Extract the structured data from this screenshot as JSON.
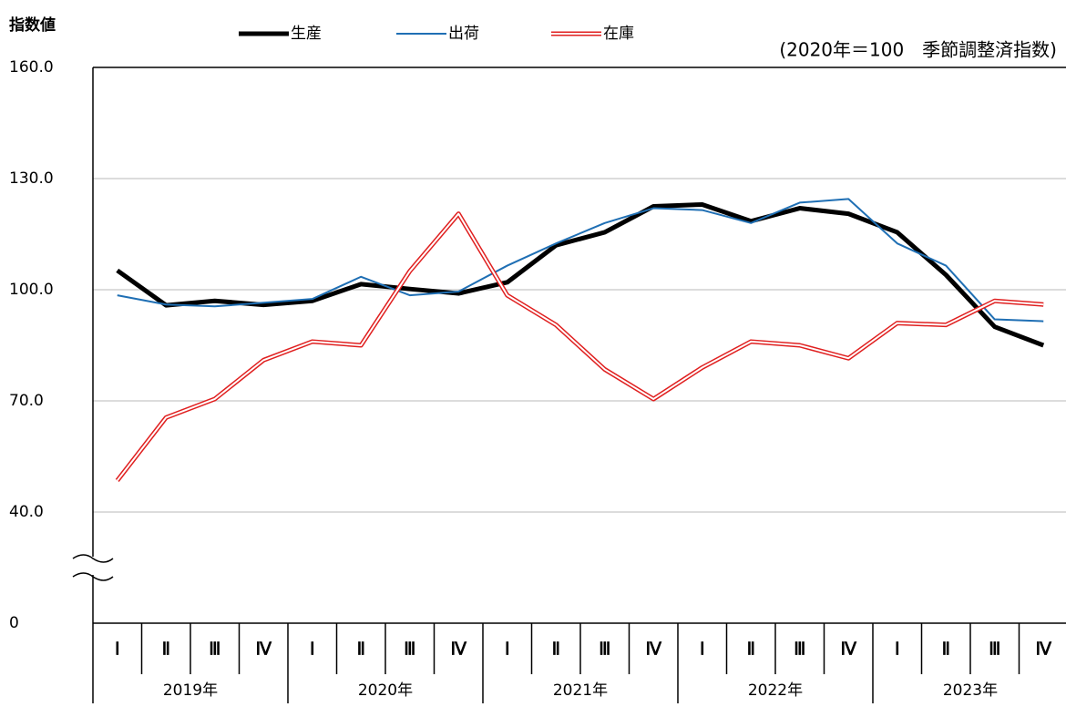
{
  "chart_data": {
    "type": "line",
    "y_axis_label": "指数値",
    "note": "(2020年＝100　季節調整済指数)",
    "categories": [
      "Ⅰ",
      "Ⅱ",
      "Ⅲ",
      "Ⅳ",
      "Ⅰ",
      "Ⅱ",
      "Ⅲ",
      "Ⅳ",
      "Ⅰ",
      "Ⅱ",
      "Ⅲ",
      "Ⅳ",
      "Ⅰ",
      "Ⅱ",
      "Ⅲ",
      "Ⅳ",
      "Ⅰ",
      "Ⅱ",
      "Ⅲ",
      "Ⅳ"
    ],
    "years": [
      "2019年",
      "2020年",
      "2021年",
      "2022年",
      "2023年"
    ],
    "series": [
      {
        "name": "生産",
        "color": "#000000",
        "values": [
          105.2,
          95.8,
          97,
          95.9,
          97,
          101.5,
          100.2,
          99,
          102,
          112,
          115.5,
          122.5,
          123,
          118.5,
          122,
          120.5,
          115.5,
          104,
          90,
          85
        ]
      },
      {
        "name": "出荷",
        "color": "#1f6fb4",
        "values": [
          98.5,
          96,
          95.5,
          96.5,
          97.5,
          103.5,
          98.5,
          99.5,
          106.5,
          112.5,
          118,
          122,
          121.5,
          118,
          123.5,
          124.5,
          112.5,
          106.5,
          92,
          91.5
        ]
      },
      {
        "name": "在庫",
        "color": "#e02020",
        "values": [
          48.5,
          65.5,
          70.5,
          81,
          86,
          85,
          105,
          120.5,
          98.5,
          90.5,
          78.5,
          70.5,
          79,
          86,
          85,
          81.5,
          91,
          90.5,
          97,
          96
        ]
      }
    ],
    "ylim": [
      0,
      160
    ],
    "yticks": [
      {
        "value": 0,
        "label": "0"
      },
      {
        "value": 40,
        "label": "40.0"
      },
      {
        "value": 70,
        "label": "70.0"
      },
      {
        "value": 100,
        "label": "100.0"
      },
      {
        "value": 130,
        "label": "130.0"
      },
      {
        "value": 160,
        "label": "160.0"
      }
    ],
    "grid": true
  }
}
